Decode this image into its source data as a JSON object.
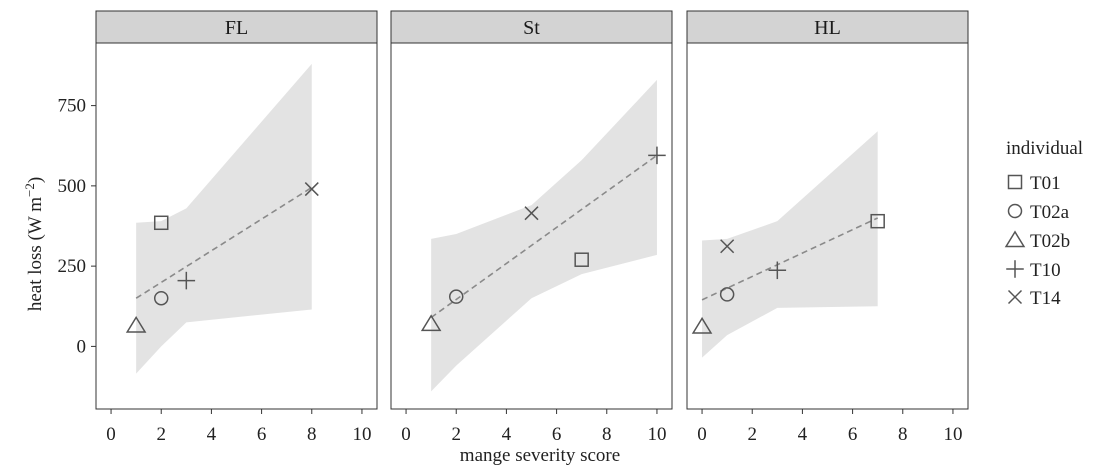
{
  "colors": {
    "strip_fill": "#d3d3d3",
    "ribbon_fill": "#e3e3e3",
    "trend_line": "#8a8a8a",
    "marker": "#555555"
  },
  "chart_data": {
    "type": "scatter",
    "xlabel": "mange severity score",
    "ylabel_main": "heat loss (W m",
    "ylabel_sup": "−2",
    "ylabel_close": ")",
    "xlim": [
      -0.6,
      10.6
    ],
    "ylim": [
      -195,
      945
    ],
    "xticks": [
      0,
      2,
      4,
      6,
      8,
      10
    ],
    "yticks": [
      0,
      250,
      500,
      750
    ],
    "grid": false,
    "legend": {
      "title": "individual",
      "position": "right",
      "entries": [
        {
          "name": "T01",
          "shape": "square"
        },
        {
          "name": "T02a",
          "shape": "circle"
        },
        {
          "name": "T02b",
          "shape": "triangle"
        },
        {
          "name": "T10",
          "shape": "plus"
        },
        {
          "name": "T14",
          "shape": "cross"
        }
      ]
    },
    "panels": [
      {
        "label": "FL",
        "points": [
          {
            "individual": "T01",
            "x": 2,
            "y": 385
          },
          {
            "individual": "T02a",
            "x": 2,
            "y": 150
          },
          {
            "individual": "T02b",
            "x": 1,
            "y": 65
          },
          {
            "individual": "T10",
            "x": 3,
            "y": 205
          },
          {
            "individual": "T14",
            "x": 8,
            "y": 490
          }
        ],
        "trend": [
          {
            "x": 1,
            "y": 150
          },
          {
            "x": 8,
            "y": 495
          }
        ],
        "ribbon": {
          "x": [
            1,
            2,
            3,
            8
          ],
          "upper": [
            385,
            390,
            430,
            880
          ],
          "lower": [
            -85,
            0,
            75,
            115
          ]
        }
      },
      {
        "label": "St",
        "points": [
          {
            "individual": "T01",
            "x": 7,
            "y": 270
          },
          {
            "individual": "T02a",
            "x": 2,
            "y": 155
          },
          {
            "individual": "T02b",
            "x": 1,
            "y": 70
          },
          {
            "individual": "T10",
            "x": 10,
            "y": 595
          },
          {
            "individual": "T14",
            "x": 5,
            "y": 415
          }
        ],
        "trend": [
          {
            "x": 1,
            "y": 90
          },
          {
            "x": 10,
            "y": 595
          }
        ],
        "ribbon": {
          "x": [
            1,
            2,
            5,
            7,
            10
          ],
          "upper": [
            335,
            350,
            440,
            580,
            830
          ],
          "lower": [
            -140,
            -60,
            150,
            225,
            285
          ]
        }
      },
      {
        "label": "HL",
        "points": [
          {
            "individual": "T01",
            "x": 7,
            "y": 390
          },
          {
            "individual": "T02a",
            "x": 1,
            "y": 162
          },
          {
            "individual": "T02b",
            "x": 0,
            "y": 62
          },
          {
            "individual": "T10",
            "x": 3,
            "y": 237
          },
          {
            "individual": "T14",
            "x": 1,
            "y": 312
          }
        ],
        "trend": [
          {
            "x": 0,
            "y": 145
          },
          {
            "x": 7,
            "y": 400
          }
        ],
        "ribbon": {
          "x": [
            0,
            1,
            3,
            7
          ],
          "upper": [
            330,
            335,
            390,
            670
          ],
          "lower": [
            -35,
            35,
            120,
            125
          ]
        }
      }
    ]
  }
}
